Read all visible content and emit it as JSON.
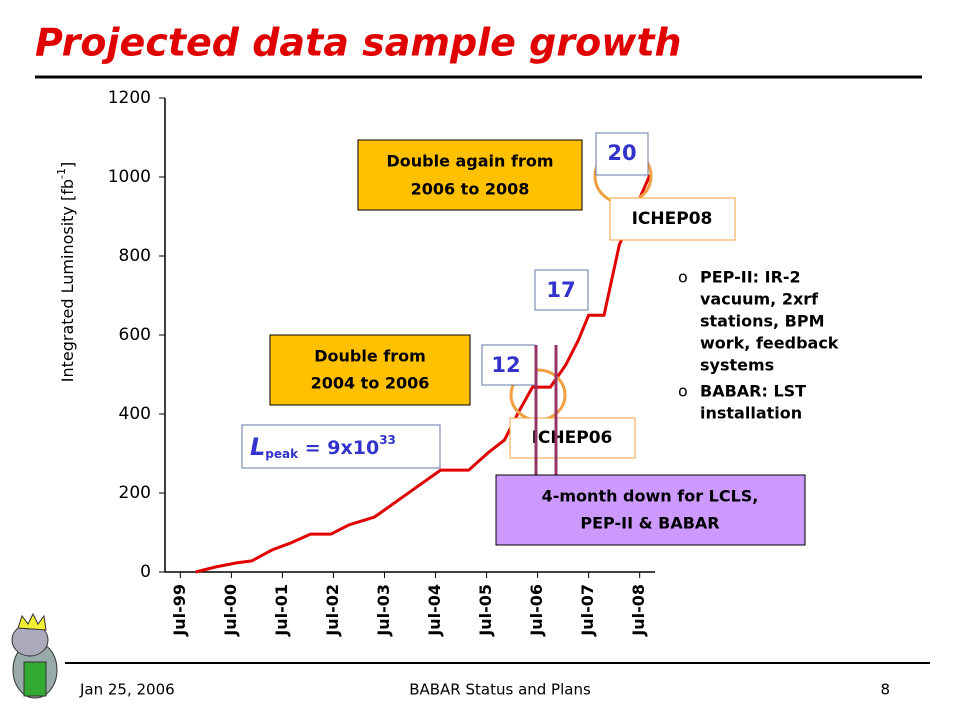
{
  "chart_data": {
    "type": "line",
    "title": "Projected data sample growth",
    "y_label": [
      "Integrated Luminosity [fb",
      "-1",
      "]"
    ],
    "x": [
      1999.8,
      2000.2,
      2000.6,
      2000.9,
      2001.3,
      2001.65,
      2002.05,
      2002.45,
      2002.8,
      2003.3,
      2003.5,
      2004.0,
      2004.6,
      2005.15,
      2005.55,
      2005.85,
      2006.15,
      2006.4,
      2006.75,
      2007.05,
      2007.3,
      2007.5,
      2007.8,
      2008.1,
      2008.7
    ],
    "values": [
      0,
      13,
      23,
      28,
      56,
      73,
      96,
      96,
      119,
      139,
      157,
      203,
      258,
      258,
      304,
      334,
      410,
      468,
      468,
      524,
      587,
      650,
      650,
      828,
      1005
    ],
    "color": "#e00000",
    "xlim": [
      1999.2,
      2008.8
    ],
    "xticks": [
      {
        "value": 1999.5,
        "label": "Jul-99"
      },
      {
        "value": 2000.5,
        "label": "Jul-00"
      },
      {
        "value": 2001.5,
        "label": "Jul-01"
      },
      {
        "value": 2002.5,
        "label": "Jul-02"
      },
      {
        "value": 2003.5,
        "label": "Jul-03"
      },
      {
        "value": 2004.5,
        "label": "Jul-04"
      },
      {
        "value": 2005.5,
        "label": "Jul-05"
      },
      {
        "value": 2006.5,
        "label": "Jul-06"
      },
      {
        "value": 2007.5,
        "label": "Jul-07"
      },
      {
        "value": 2008.5,
        "label": "Jul-08"
      }
    ],
    "ylim": [
      0,
      1200
    ],
    "yticks": [
      0,
      200,
      400,
      600,
      800,
      1000,
      1200
    ],
    "annotations": {
      "double_again": [
        "Double again from",
        "2006 to 2008"
      ],
      "double": [
        "Double from",
        "2004 to 2006"
      ],
      "box_20": "20",
      "box_17": "17",
      "box_12": "12",
      "ichep08": "ICHEP08",
      "ichep06": "ICHEP06",
      "lpeak": [
        "L",
        "peak",
        " = 9x10",
        "33"
      ],
      "down": [
        "4-month down for LCLS,",
        "PEP-II & BABAR"
      ]
    },
    "bullets": [
      [
        "PEP-II: IR-2",
        "vacuum, 2xrf",
        "stations, BPM",
        "work, feedback",
        "systems"
      ],
      [
        "BABAR: LST",
        "installation"
      ]
    ]
  },
  "footer": {
    "date": "Jan 25, 2006",
    "center": "BABAR Status and Plans",
    "page": "8"
  }
}
